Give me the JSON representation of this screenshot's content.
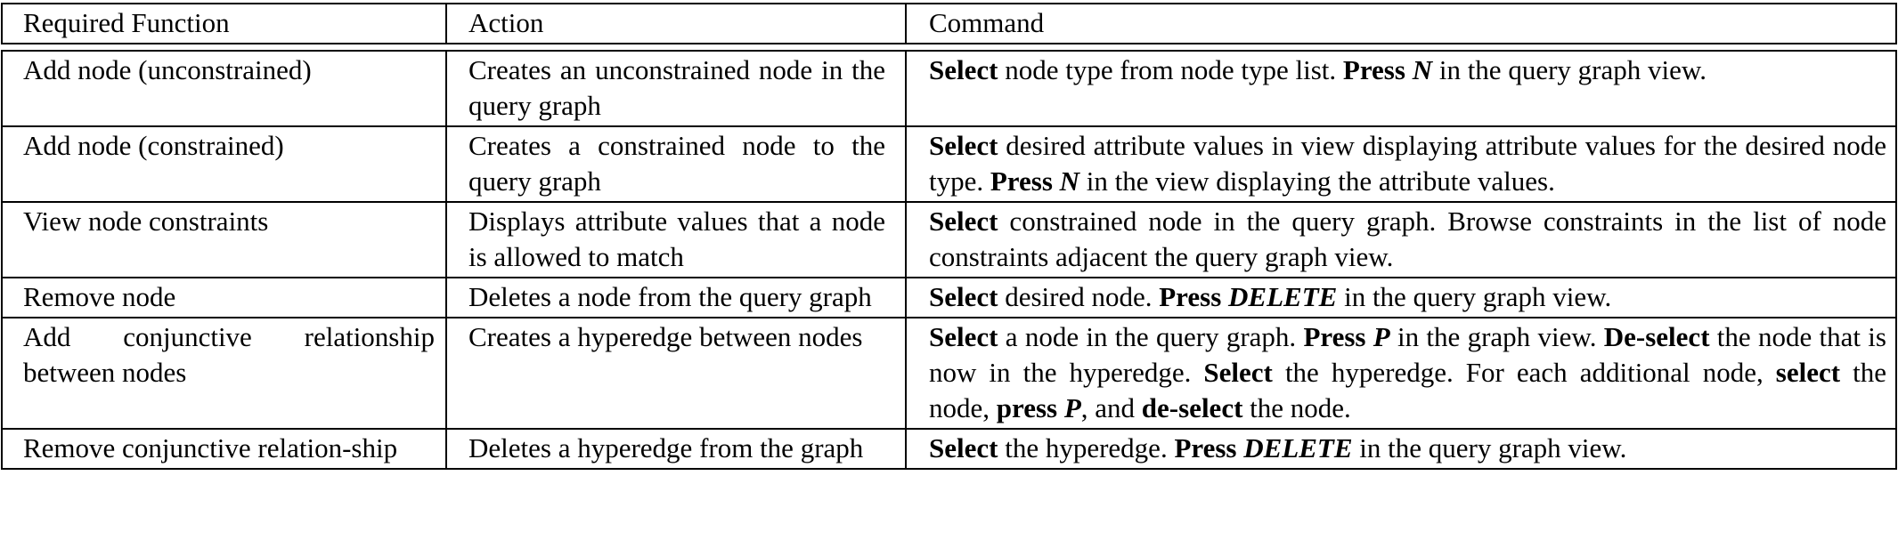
{
  "headers": {
    "function": "Required Function",
    "action": "Action",
    "command": "Command"
  },
  "rows": [
    {
      "function": "Add node (unconstrained)",
      "action": "Creates an unconstrained node in the query graph",
      "command": [
        {
          "b": "Select"
        },
        {
          "t": " node type from node type list. "
        },
        {
          "b": "Press "
        },
        {
          "bi": "N"
        },
        {
          "t": " in the query graph view."
        }
      ]
    },
    {
      "function": "Add node (constrained)",
      "action": "Creates a constrained node to the query graph",
      "command": [
        {
          "b": "Select"
        },
        {
          "t": " desired attribute values in view displaying attribute values for the desired node type. "
        },
        {
          "b": "Press "
        },
        {
          "bi": "N"
        },
        {
          "t": " in the view displaying the attribute values."
        }
      ]
    },
    {
      "function": "View node constraints",
      "action": "Displays attribute values that a node is allowed to match",
      "command": [
        {
          "b": "Select"
        },
        {
          "t": " constrained node in the query graph. Browse constraints in the list of node constraints adjacent the query graph view."
        }
      ]
    },
    {
      "function": "Remove node",
      "action": "Deletes a node from the query graph",
      "command": [
        {
          "b": "Select"
        },
        {
          "t": " desired node. "
        },
        {
          "b": "Press "
        },
        {
          "bi": "DELETE"
        },
        {
          "t": " in the query graph view."
        }
      ]
    },
    {
      "function": "Add conjunctive relationship between nodes",
      "action": "Creates a hyperedge between nodes",
      "command": [
        {
          "b": "Select"
        },
        {
          "t": " a node in the query graph. "
        },
        {
          "b": "Press "
        },
        {
          "bi": "P"
        },
        {
          "t": " in the graph view. "
        },
        {
          "b": "De-select"
        },
        {
          "t": " the node that is now in the hyperedge. "
        },
        {
          "b": "Select"
        },
        {
          "t": " the hyperedge. For each additional node, "
        },
        {
          "b": "select"
        },
        {
          "t": " the node, "
        },
        {
          "b": "press "
        },
        {
          "bi": "P"
        },
        {
          "t": ", and "
        },
        {
          "b": "de-select"
        },
        {
          "t": " the node."
        }
      ]
    },
    {
      "function": "Remove conjunctive relation-ship",
      "action": "Deletes a hyperedge from the graph",
      "command": [
        {
          "b": "Select"
        },
        {
          "t": " the hyperedge. "
        },
        {
          "b": "Press "
        },
        {
          "bi": "DELETE"
        },
        {
          "t": " in the query graph view."
        }
      ]
    }
  ]
}
